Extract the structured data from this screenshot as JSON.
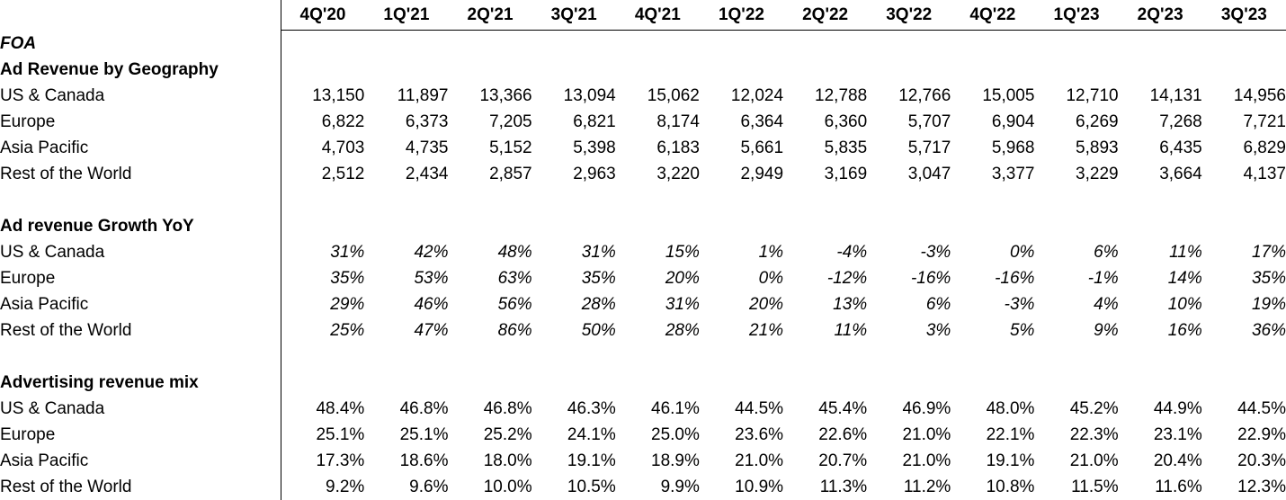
{
  "columns": [
    "4Q'20",
    "1Q'21",
    "2Q'21",
    "3Q'21",
    "4Q'21",
    "1Q'22",
    "2Q'22",
    "3Q'22",
    "4Q'22",
    "1Q'23",
    "2Q'23",
    "3Q'23"
  ],
  "group_title": "FOA",
  "sections": [
    {
      "title": "Ad Revenue by Geography",
      "italic": false,
      "rows": [
        {
          "label": "US & Canada",
          "values": [
            "13,150",
            "11,897",
            "13,366",
            "13,094",
            "15,062",
            "12,024",
            "12,788",
            "12,766",
            "15,005",
            "12,710",
            "14,131",
            "14,956"
          ]
        },
        {
          "label": "Europe",
          "values": [
            "6,822",
            "6,373",
            "7,205",
            "6,821",
            "8,174",
            "6,364",
            "6,360",
            "5,707",
            "6,904",
            "6,269",
            "7,268",
            "7,721"
          ]
        },
        {
          "label": "Asia Pacific",
          "values": [
            "4,703",
            "4,735",
            "5,152",
            "5,398",
            "6,183",
            "5,661",
            "5,835",
            "5,717",
            "5,968",
            "5,893",
            "6,435",
            "6,829"
          ]
        },
        {
          "label": "Rest of the World",
          "values": [
            "2,512",
            "2,434",
            "2,857",
            "2,963",
            "3,220",
            "2,949",
            "3,169",
            "3,047",
            "3,377",
            "3,229",
            "3,664",
            "4,137"
          ]
        }
      ]
    },
    {
      "title": "Ad revenue Growth YoY",
      "italic": true,
      "rows": [
        {
          "label": "US & Canada",
          "values": [
            "31%",
            "42%",
            "48%",
            "31%",
            "15%",
            "1%",
            "-4%",
            "-3%",
            "0%",
            "6%",
            "11%",
            "17%"
          ]
        },
        {
          "label": "Europe",
          "values": [
            "35%",
            "53%",
            "63%",
            "35%",
            "20%",
            "0%",
            "-12%",
            "-16%",
            "-16%",
            "-1%",
            "14%",
            "35%"
          ]
        },
        {
          "label": "Asia Pacific",
          "values": [
            "29%",
            "46%",
            "56%",
            "28%",
            "31%",
            "20%",
            "13%",
            "6%",
            "-3%",
            "4%",
            "10%",
            "19%"
          ]
        },
        {
          "label": "Rest of the World",
          "values": [
            "25%",
            "47%",
            "86%",
            "50%",
            "28%",
            "21%",
            "11%",
            "3%",
            "5%",
            "9%",
            "16%",
            "36%"
          ]
        }
      ]
    },
    {
      "title": "Advertising revenue mix",
      "italic": false,
      "rows": [
        {
          "label": "US & Canada",
          "values": [
            "48.4%",
            "46.8%",
            "46.8%",
            "46.3%",
            "46.1%",
            "44.5%",
            "45.4%",
            "46.9%",
            "48.0%",
            "45.2%",
            "44.9%",
            "44.5%"
          ]
        },
        {
          "label": "Europe",
          "values": [
            "25.1%",
            "25.1%",
            "25.2%",
            "24.1%",
            "25.0%",
            "23.6%",
            "22.6%",
            "21.0%",
            "22.1%",
            "22.3%",
            "23.1%",
            "22.9%"
          ]
        },
        {
          "label": "Asia Pacific",
          "values": [
            "17.3%",
            "18.6%",
            "18.0%",
            "19.1%",
            "18.9%",
            "21.0%",
            "20.7%",
            "21.0%",
            "19.1%",
            "21.0%",
            "20.4%",
            "20.3%"
          ]
        },
        {
          "label": "Rest of the World",
          "values": [
            "9.2%",
            "9.6%",
            "10.0%",
            "10.5%",
            "9.9%",
            "10.9%",
            "11.3%",
            "11.2%",
            "10.8%",
            "11.5%",
            "11.6%",
            "12.3%"
          ]
        }
      ]
    }
  ]
}
